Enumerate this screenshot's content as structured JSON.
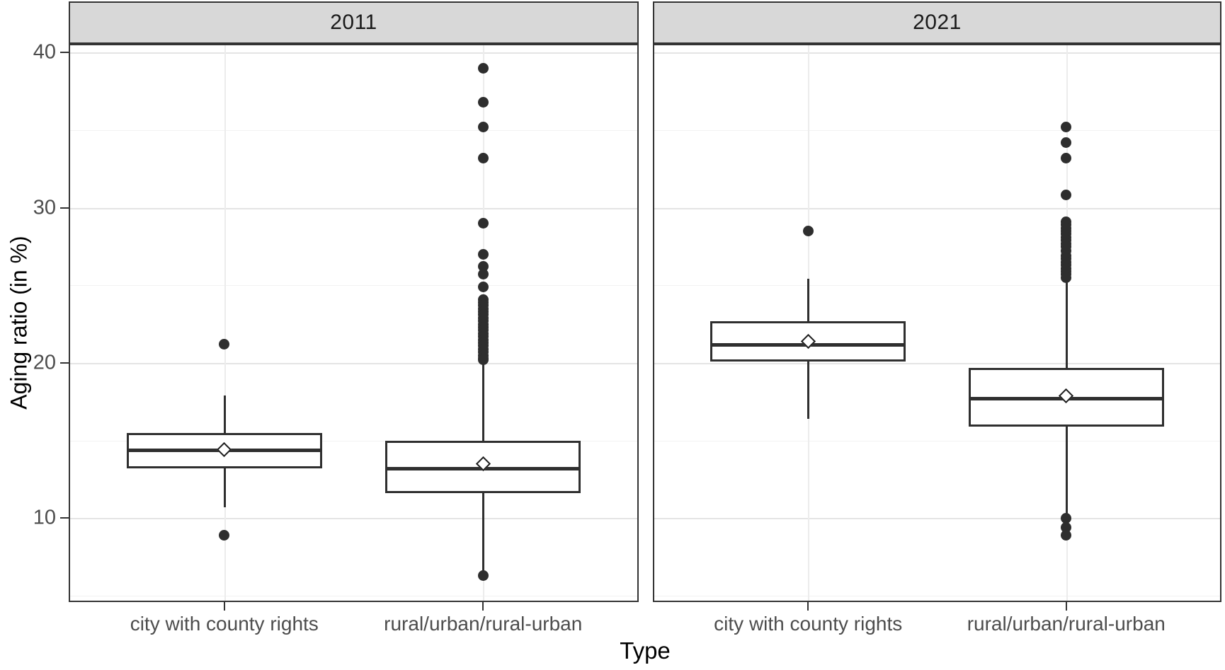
{
  "chart_data": {
    "type": "boxplot",
    "title": "",
    "xlabel": "Type",
    "ylabel": "Aging ratio (in %)",
    "ylim": [
      4.6,
      40.55
    ],
    "y_major_ticks": [
      40,
      30,
      20,
      10
    ],
    "y_minor_ticks": [
      35,
      25,
      15,
      5
    ],
    "grid": "on",
    "legend": "none",
    "categories": [
      "city with county rights",
      "rural/urban/rural-urban"
    ],
    "facets": [
      {
        "label": "2011",
        "groups": [
          {
            "category": "city with county rights",
            "whisker_low": 10.7,
            "q1": 13.2,
            "median": 14.4,
            "q3": 15.5,
            "whisker_high": 17.9,
            "mean": 14.4,
            "outliers": [
              21.2,
              8.9
            ]
          },
          {
            "category": "rural/urban/rural-urban",
            "whisker_low": 6.4,
            "q1": 11.6,
            "median": 13.2,
            "q3": 15.0,
            "whisker_high": 20.1,
            "mean": 13.5,
            "outliers": [
              39.0,
              36.8,
              35.2,
              33.2,
              29.0,
              27.0,
              26.2,
              25.7,
              24.9,
              24.1,
              23.9,
              23.7,
              23.5,
              23.3,
              23.1,
              22.9,
              22.7,
              22.5,
              22.3,
              22.1,
              21.9,
              21.7,
              21.5,
              21.3,
              21.1,
              20.9,
              20.7,
              20.5,
              20.3,
              20.2,
              6.3
            ]
          }
        ]
      },
      {
        "label": "2021",
        "groups": [
          {
            "category": "city with county rights",
            "whisker_low": 16.4,
            "q1": 20.1,
            "median": 21.2,
            "q3": 22.7,
            "whisker_high": 25.4,
            "mean": 21.4,
            "outliers": [
              28.5
            ]
          },
          {
            "category": "rural/urban/rural-urban",
            "whisker_low": 10.2,
            "q1": 15.9,
            "median": 17.7,
            "q3": 19.7,
            "whisker_high": 25.2,
            "mean": 17.9,
            "outliers": [
              35.2,
              34.2,
              33.2,
              30.8,
              29.1,
              28.9,
              28.7,
              28.5,
              28.3,
              28.1,
              27.9,
              27.7,
              27.5,
              27.2,
              26.9,
              26.7,
              26.5,
              26.3,
              26.1,
              25.9,
              25.7,
              25.5,
              10.0,
              9.4,
              8.9
            ]
          }
        ]
      }
    ],
    "style": {
      "strip_fill": "#d8d8d8",
      "strip_border": "#333333",
      "panel_border": "#343434",
      "box_color": "#2f2f2f",
      "major_grid": "#e4e4e4",
      "minor_grid": "#f2f2f2",
      "tick_label_color": "#4d4d4d",
      "axis_title_color": "#000000"
    }
  }
}
